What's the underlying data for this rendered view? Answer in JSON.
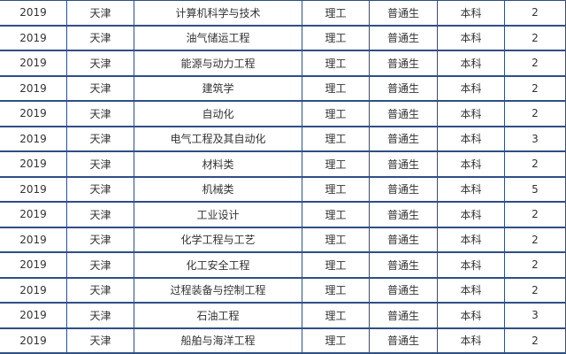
{
  "rows": [
    [
      "2019",
      "天津",
      "计算机科学与技术",
      "理工",
      "普通生",
      "本科",
      "2"
    ],
    [
      "2019",
      "天津",
      "油气储运工程",
      "理工",
      "普通生",
      "本科",
      "2"
    ],
    [
      "2019",
      "天津",
      "能源与动力工程",
      "理工",
      "普通生",
      "本科",
      "2"
    ],
    [
      "2019",
      "天津",
      "建筑学",
      "理工",
      "普通生",
      "本科",
      "2"
    ],
    [
      "2019",
      "天津",
      "自动化",
      "理工",
      "普通生",
      "本科",
      "2"
    ],
    [
      "2019",
      "天津",
      "电气工程及其自动化",
      "理工",
      "普通生",
      "本科",
      "3"
    ],
    [
      "2019",
      "天津",
      "材料类",
      "理工",
      "普通生",
      "本科",
      "2"
    ],
    [
      "2019",
      "天津",
      "机械类",
      "理工",
      "普通生",
      "本科",
      "5"
    ],
    [
      "2019",
      "天津",
      "工业设计",
      "理工",
      "普通生",
      "本科",
      "2"
    ],
    [
      "2019",
      "天津",
      "化学工程与工艺",
      "理工",
      "普通生",
      "本科",
      "2"
    ],
    [
      "2019",
      "天津",
      "化工安全工程",
      "理工",
      "普通生",
      "本科",
      "2"
    ],
    [
      "2019",
      "天津",
      "过程装备与控制工程",
      "理工",
      "普通生",
      "本科",
      "2"
    ],
    [
      "2019",
      "天津",
      "石油工程",
      "理工",
      "普通生",
      "本科",
      "3"
    ],
    [
      "2019",
      "天津",
      "船舶与海洋工程",
      "理工",
      "普通生",
      "本科",
      "2"
    ]
  ],
  "colors": {
    "border": "#2f4f86",
    "text": "#333333"
  }
}
